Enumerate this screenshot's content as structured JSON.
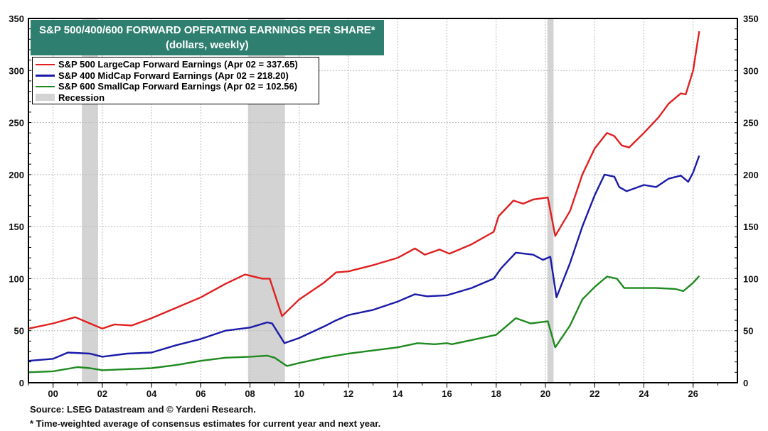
{
  "chart_data": {
    "type": "line",
    "title": "S&P 500/400/600 FORWARD OPERATING EARNINGS PER SHARE*",
    "subtitle": "(dollars, weekly)",
    "xlabel": "",
    "ylabel": "",
    "xlim": [
      1999,
      2027.8
    ],
    "ylim": [
      0,
      350
    ],
    "y_ticks": [
      0,
      50,
      100,
      150,
      200,
      250,
      300,
      350
    ],
    "x_ticks": [
      2000,
      2002,
      2004,
      2006,
      2008,
      2010,
      2012,
      2014,
      2016,
      2018,
      2020,
      2022,
      2024,
      2026
    ],
    "x_tick_labels": [
      "00",
      "02",
      "04",
      "06",
      "08",
      "10",
      "12",
      "14",
      "16",
      "18",
      "20",
      "22",
      "24",
      "26"
    ],
    "grid": true,
    "legend_position": "top-left",
    "recessions": [
      [
        2001.17,
        2001.83
      ],
      [
        2007.92,
        2009.42
      ],
      [
        2020.08,
        2020.33
      ]
    ],
    "recession_label": "Recession",
    "recession_color": "#d3d3d3",
    "series": [
      {
        "name": "S&P 500 LargeCap Forward Earnings (Apr 02 = 337.65)",
        "color": "#e02020",
        "x": [
          1999,
          2000,
          2000.9,
          2001.5,
          2002,
          2002.5,
          2003.2,
          2004,
          2005,
          2006,
          2007,
          2007.8,
          2008.5,
          2008.8,
          2009.3,
          2010,
          2011,
          2011.5,
          2012,
          2013,
          2014,
          2014.7,
          2015.1,
          2015.7,
          2016.1,
          2017,
          2017.9,
          2018.1,
          2018.7,
          2019.1,
          2019.5,
          2020.1,
          2020.4,
          2021,
          2021.5,
          2022,
          2022.5,
          2022.8,
          2023.1,
          2023.4,
          2024,
          2024.6,
          2025,
          2025.5,
          2025.7,
          2026,
          2026.25
        ],
        "y": [
          52,
          57,
          63,
          57,
          52,
          56,
          55,
          62,
          72,
          82,
          95,
          104,
          100,
          100,
          64,
          80,
          96,
          106,
          107,
          113,
          120,
          129,
          123,
          128,
          124,
          133,
          145,
          160,
          175,
          172,
          176,
          178,
          141,
          165,
          200,
          225,
          240,
          237,
          228,
          226,
          240,
          255,
          268,
          278,
          277,
          300,
          337.65
        ]
      },
      {
        "name": "S&P 400 MidCap Forward Earnings (Apr 02 = 218.20)",
        "color": "#1a1aa8",
        "x": [
          1999,
          2000,
          2000.6,
          2001.5,
          2002,
          2003,
          2004,
          2005,
          2006,
          2007,
          2008,
          2008.7,
          2008.9,
          2009.4,
          2010,
          2011,
          2011.5,
          2012,
          2013,
          2014,
          2014.7,
          2015.2,
          2016,
          2017,
          2017.9,
          2018.2,
          2018.8,
          2019.5,
          2019.9,
          2020.2,
          2020.45,
          2021,
          2021.5,
          2022,
          2022.4,
          2022.8,
          2023,
          2023.3,
          2024,
          2024.5,
          2025,
          2025.5,
          2025.8,
          2026,
          2026.25
        ],
        "y": [
          21,
          23,
          29,
          28,
          25,
          28,
          29,
          36,
          42,
          50,
          53,
          58,
          57,
          38,
          43,
          54,
          60,
          65,
          70,
          78,
          85,
          83,
          84,
          91,
          100,
          110,
          125,
          123,
          118,
          121,
          82,
          115,
          150,
          180,
          200,
          198,
          188,
          184,
          190,
          188,
          196,
          199,
          193,
          202,
          218.2
        ]
      },
      {
        "name": "S&P 600 SmallCap Forward Earnings (Apr 02 = 102.56)",
        "color": "#1f8a1f",
        "x": [
          1999,
          2000,
          2001,
          2001.5,
          2002,
          2003,
          2004,
          2005,
          2006,
          2007,
          2008,
          2008.7,
          2009,
          2009.5,
          2010,
          2011,
          2012,
          2013,
          2014,
          2014.8,
          2015.5,
          2016,
          2016.2,
          2017,
          2018,
          2018.3,
          2018.8,
          2019.4,
          2020.1,
          2020.4,
          2021,
          2021.5,
          2022,
          2022.5,
          2022.9,
          2023.2,
          2024,
          2024.5,
          2025.3,
          2025.6,
          2026,
          2026.25
        ],
        "y": [
          10,
          11,
          15,
          14,
          12,
          13,
          14,
          17,
          21,
          24,
          25,
          26,
          24,
          16,
          19,
          24,
          28,
          31,
          34,
          38,
          37,
          38,
          37,
          41,
          46,
          52,
          62,
          57,
          59,
          34,
          55,
          80,
          92,
          102,
          100,
          91,
          91,
          91,
          90,
          88,
          96,
          102.56
        ]
      }
    ]
  },
  "footer": {
    "source": "Source: LSEG Datastream and © Yardeni Research.",
    "footnote": "* Time-weighted average of consensus estimates for current year and next year."
  }
}
